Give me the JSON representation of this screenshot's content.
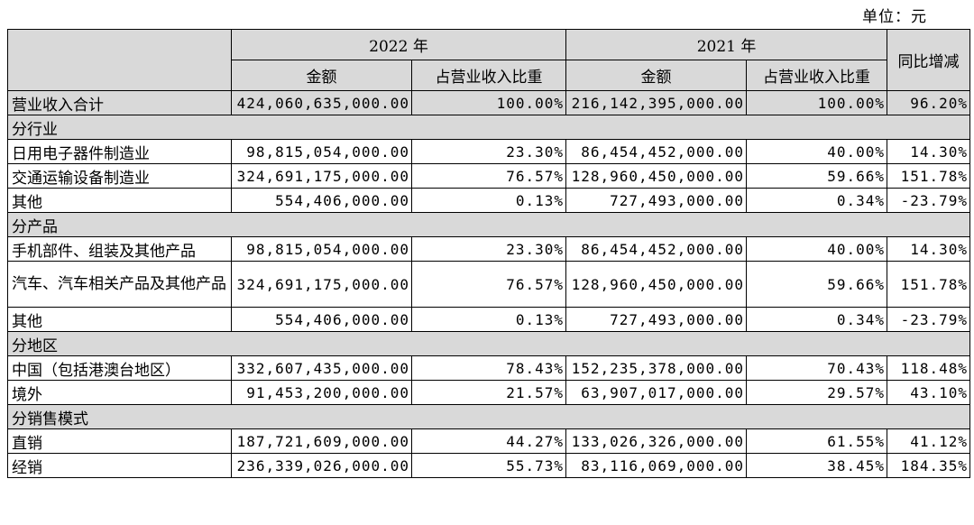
{
  "unit_label": "单位：元",
  "header": {
    "year_2022": "2022 年",
    "year_2021": "2021 年",
    "amount": "金额",
    "ratio": "占营业收入比重",
    "yoy": "同比增减"
  },
  "total": {
    "label": "营业收入合计",
    "amount_2022": "424,060,635,000.00",
    "ratio_2022": "100.00%",
    "amount_2021": "216,142,395,000.00",
    "ratio_2021": "100.00%",
    "yoy": "96.20%"
  },
  "sections": [
    {
      "title": "分行业",
      "rows": [
        {
          "label": "日用电子器件制造业",
          "amount_2022": "98,815,054,000.00",
          "ratio_2022": "23.30%",
          "amount_2021": "86,454,452,000.00",
          "ratio_2021": "40.00%",
          "yoy": "14.30%"
        },
        {
          "label": "交通运输设备制造业",
          "amount_2022": "324,691,175,000.00",
          "ratio_2022": "76.57%",
          "amount_2021": "128,960,450,000.00",
          "ratio_2021": "59.66%",
          "yoy": "151.78%"
        },
        {
          "label": "其他",
          "amount_2022": "554,406,000.00",
          "ratio_2022": "0.13%",
          "amount_2021": "727,493,000.00",
          "ratio_2021": "0.34%",
          "yoy": "-23.79%"
        }
      ]
    },
    {
      "title": "分产品",
      "rows": [
        {
          "label": "手机部件、组装及其他产品",
          "amount_2022": "98,815,054,000.00",
          "ratio_2022": "23.30%",
          "amount_2021": "86,454,452,000.00",
          "ratio_2021": "40.00%",
          "yoy": "14.30%"
        },
        {
          "label": "汽车、汽车相关产品及其他产品",
          "amount_2022": "324,691,175,000.00",
          "ratio_2022": "76.57%",
          "amount_2021": "128,960,450,000.00",
          "ratio_2021": "59.66%",
          "yoy": "151.78%",
          "tall": true
        },
        {
          "label": "其他",
          "amount_2022": "554,406,000.00",
          "ratio_2022": "0.13%",
          "amount_2021": "727,493,000.00",
          "ratio_2021": "0.34%",
          "yoy": "-23.79%"
        }
      ]
    },
    {
      "title": "分地区",
      "rows": [
        {
          "label": "中国（包括港澳台地区）",
          "amount_2022": "332,607,435,000.00",
          "ratio_2022": "78.43%",
          "amount_2021": "152,235,378,000.00",
          "ratio_2021": "70.43%",
          "yoy": "118.48%"
        },
        {
          "label": "境外",
          "amount_2022": "91,453,200,000.00",
          "ratio_2022": "21.57%",
          "amount_2021": "63,907,017,000.00",
          "ratio_2021": "29.57%",
          "yoy": "43.10%"
        }
      ]
    },
    {
      "title": "分销售模式",
      "rows": [
        {
          "label": "直销",
          "amount_2022": "187,721,609,000.00",
          "ratio_2022": "44.27%",
          "amount_2021": "133,026,326,000.00",
          "ratio_2021": "61.55%",
          "yoy": "41.12%"
        },
        {
          "label": "经销",
          "amount_2022": "236,339,026,000.00",
          "ratio_2022": "55.73%",
          "amount_2021": "83,116,069,000.00",
          "ratio_2021": "38.45%",
          "yoy": "184.35%"
        }
      ]
    }
  ]
}
